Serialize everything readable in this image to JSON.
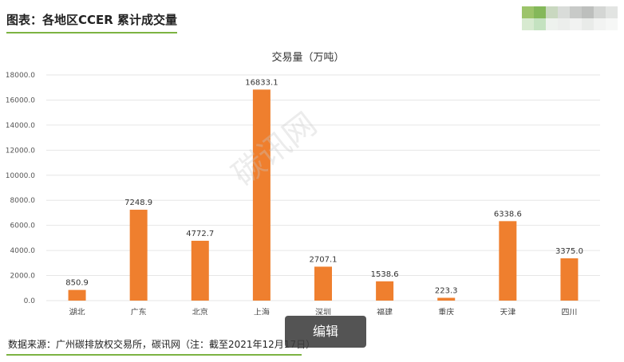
{
  "header": {
    "title": "图表：各地区CCER 累计成交量"
  },
  "footer": {
    "source": "数据来源：广州碳排放权交易所，碳讯网（注：截至2021年12月17日）"
  },
  "overlay": {
    "edit_label": "编辑",
    "watermark": "碳讯网"
  },
  "colors": {
    "bar": "#ef7f2e",
    "accent_line": "#7cb342",
    "grid": "#e6e6e6"
  },
  "chart_data": {
    "type": "bar",
    "title": "交易量（万吨）",
    "categories": [
      "湖北",
      "广东",
      "北京",
      "上海",
      "深圳",
      "福建",
      "重庆",
      "天津",
      "四川"
    ],
    "values": [
      850.9,
      7248.9,
      4772.7,
      16833.1,
      2707.1,
      1538.6,
      223.3,
      6338.6,
      3375.0
    ],
    "value_labels": [
      "850.9",
      "7248.9",
      "4772.7",
      "16833.1",
      "2707.1",
      "1538.6",
      "223.3",
      "6338.6",
      "3375.0"
    ],
    "ylim": [
      0,
      18000
    ],
    "yticks": [
      0,
      2000,
      4000,
      6000,
      8000,
      10000,
      12000,
      14000,
      16000,
      18000
    ],
    "ytick_labels": [
      "0.0",
      "2000.0",
      "4000.0",
      "6000.0",
      "8000.0",
      "10000.0",
      "12000.0",
      "14000.0",
      "16000.0",
      "18000.0"
    ],
    "xlabel": "",
    "ylabel": "",
    "grid": true,
    "legend": "none"
  }
}
